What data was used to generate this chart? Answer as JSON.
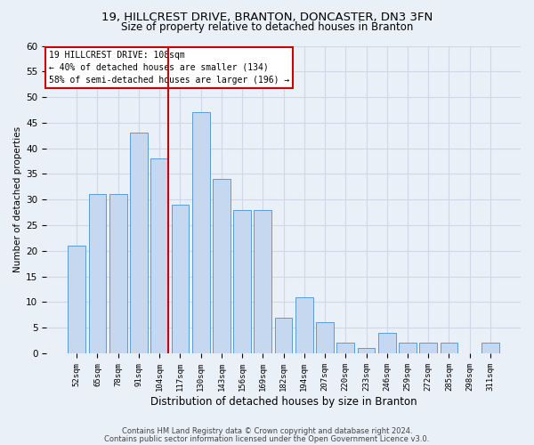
{
  "title1": "19, HILLCREST DRIVE, BRANTON, DONCASTER, DN3 3FN",
  "title2": "Size of property relative to detached houses in Branton",
  "xlabel": "Distribution of detached houses by size in Branton",
  "ylabel": "Number of detached properties",
  "categories": [
    "52sqm",
    "65sqm",
    "78sqm",
    "91sqm",
    "104sqm",
    "117sqm",
    "130sqm",
    "143sqm",
    "156sqm",
    "169sqm",
    "182sqm",
    "194sqm",
    "207sqm",
    "220sqm",
    "233sqm",
    "246sqm",
    "259sqm",
    "272sqm",
    "285sqm",
    "298sqm",
    "311sqm"
  ],
  "values": [
    21,
    31,
    31,
    43,
    38,
    29,
    47,
    34,
    28,
    28,
    7,
    11,
    6,
    2,
    1,
    4,
    2,
    2,
    2,
    0,
    2
  ],
  "bar_color": "#c5d8f0",
  "bar_edge_color": "#5b9bd5",
  "property_line_idx": 4,
  "annotation_line1": "19 HILLCREST DRIVE: 108sqm",
  "annotation_line2": "← 40% of detached houses are smaller (134)",
  "annotation_line3": "58% of semi-detached houses are larger (196) →",
  "annotation_box_color": "#ffffff",
  "annotation_box_edge": "#cc0000",
  "vline_color": "#cc0000",
  "ylim": [
    0,
    60
  ],
  "yticks": [
    0,
    5,
    10,
    15,
    20,
    25,
    30,
    35,
    40,
    45,
    50,
    55,
    60
  ],
  "grid_color": "#d0d8e8",
  "footer1": "Contains HM Land Registry data © Crown copyright and database right 2024.",
  "footer2": "Contains public sector information licensed under the Open Government Licence v3.0.",
  "bg_color": "#eaf0f8"
}
